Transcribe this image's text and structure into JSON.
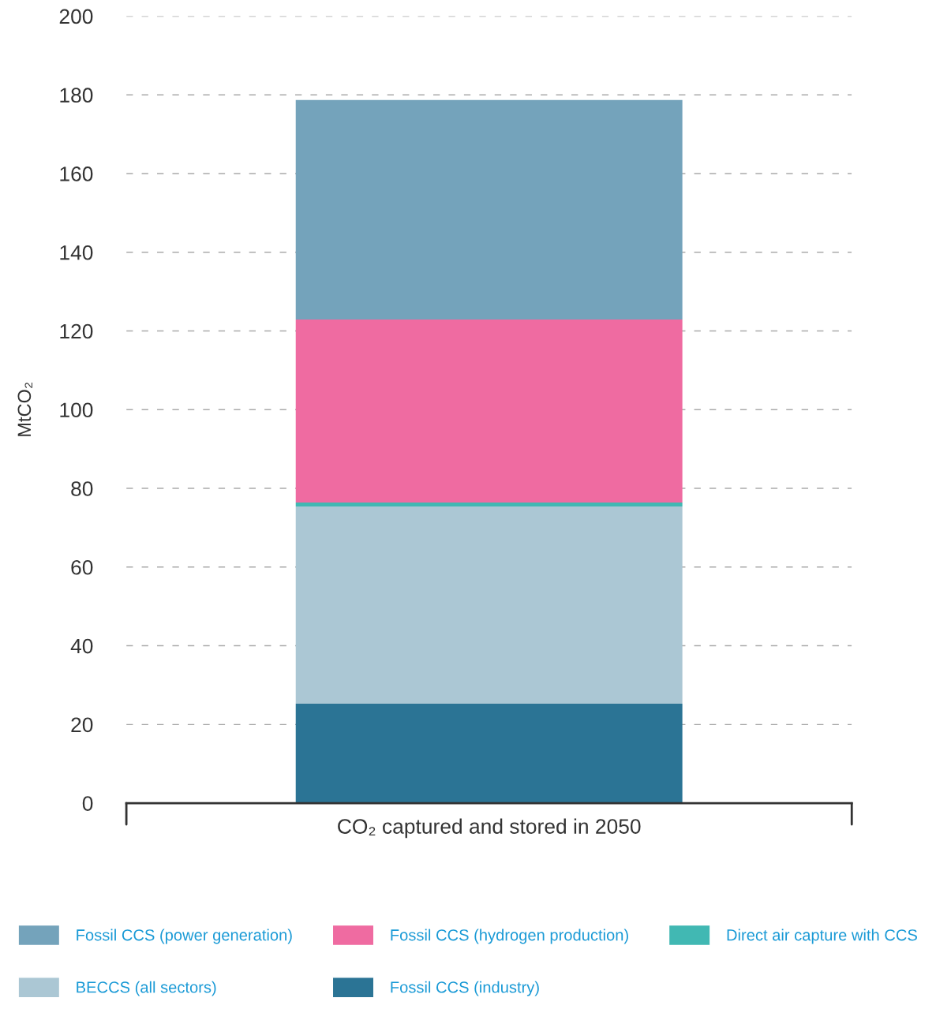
{
  "chart_data": {
    "type": "bar",
    "stacked": true,
    "categories": [
      "CO₂ captured and stored in 2050"
    ],
    "ylabel": "MtCO₂",
    "series": [
      {
        "name": "Fossil CCS (industry)",
        "color": "#2b7495",
        "values": [
          25.3
        ]
      },
      {
        "name": "BECCS (all sectors)",
        "color": "#abc7d4",
        "values": [
          50.1
        ]
      },
      {
        "name": "Direct air capture with CCS",
        "color": "#41b8b3",
        "values": [
          1.0
        ]
      },
      {
        "name": "Fossil CCS (hydrogen production)",
        "color": "#ef6ba1",
        "values": [
          46.5
        ]
      },
      {
        "name": "Fossil CCS (power generation)",
        "color": "#74a3bb",
        "values": [
          55.8
        ]
      }
    ],
    "ylim": [
      0,
      200
    ],
    "yticks": [
      0,
      20,
      40,
      60,
      80,
      100,
      120,
      140,
      160,
      180,
      200
    ],
    "grid": "y",
    "legend": "bottom"
  }
}
